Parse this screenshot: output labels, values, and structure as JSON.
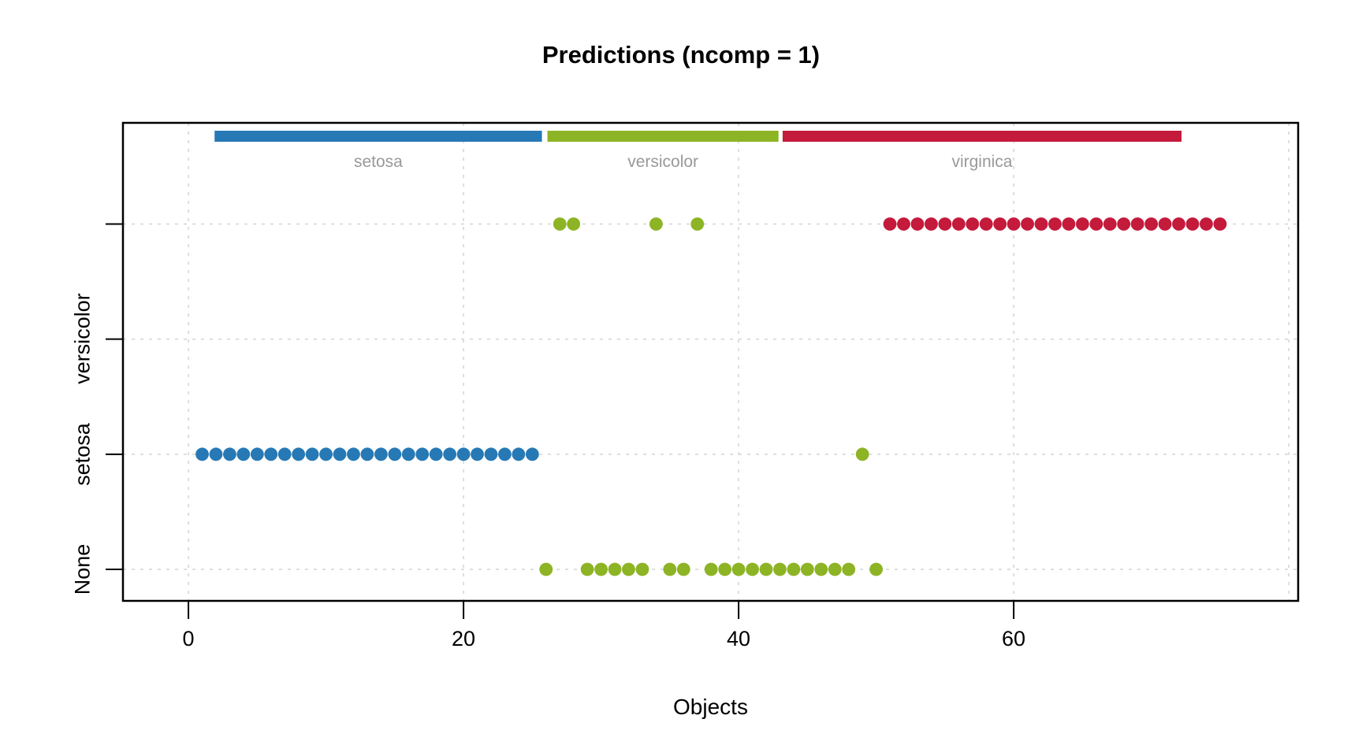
{
  "chart": {
    "title": "Predictions (ncomp = 1)",
    "xlabel": "Objects"
  },
  "chart_data": {
    "type": "scatter",
    "title": "Predictions (ncomp = 1)",
    "xlabel": "Objects",
    "ylabel": "",
    "grid": "dotted",
    "xlim": [
      -4.76,
      80.68
    ],
    "x_ticks": [
      0,
      20,
      40,
      60
    ],
    "x_gridlines": [
      0,
      20,
      40,
      60,
      80
    ],
    "y_categories": [
      "None",
      "setosa",
      "versicolor",
      "virginica"
    ],
    "y_tick_labels": [
      "None",
      "setosa",
      "versicolor"
    ],
    "colors": {
      "setosa": "#2679B5",
      "versicolor": "#8DB425",
      "virginica": "#C41A3B",
      "bar_label": "#999999",
      "gridline": "#D4D4D4",
      "axis": "#000000"
    },
    "class_bars": [
      {
        "label": "setosa",
        "color": "#2679B5",
        "x_start": 1.9,
        "x_end": 25.7
      },
      {
        "label": "versicolor",
        "color": "#8DB425",
        "x_start": 26.1,
        "x_end": 42.9
      },
      {
        "label": "virginica",
        "color": "#C41A3B",
        "x_start": 43.2,
        "x_end": 72.2
      }
    ],
    "series": [
      {
        "name": "setosa",
        "color": "#2679B5",
        "points": [
          {
            "y": "setosa",
            "x": [
              1,
              2,
              3,
              4,
              5,
              6,
              7,
              8,
              9,
              10,
              11,
              12,
              13,
              14,
              15,
              16,
              17,
              18,
              19,
              20,
              21,
              22,
              23,
              24,
              25
            ]
          }
        ]
      },
      {
        "name": "versicolor",
        "color": "#8DB425",
        "points": [
          {
            "y": "virginica",
            "x": [
              27,
              28,
              34,
              37
            ]
          },
          {
            "y": "setosa",
            "x": [
              49
            ]
          },
          {
            "y": "None",
            "x": [
              26,
              29,
              30,
              31,
              32,
              33,
              35,
              36,
              38,
              39,
              40,
              41,
              42,
              43,
              44,
              45,
              46,
              47,
              48,
              50
            ]
          }
        ]
      },
      {
        "name": "virginica",
        "color": "#C41A3B",
        "points": [
          {
            "y": "virginica",
            "x": [
              51,
              52,
              53,
              54,
              55,
              56,
              57,
              58,
              59,
              60,
              61,
              62,
              63,
              64,
              65,
              66,
              67,
              68,
              69,
              70,
              71,
              72,
              73,
              74,
              75
            ]
          }
        ]
      }
    ]
  }
}
